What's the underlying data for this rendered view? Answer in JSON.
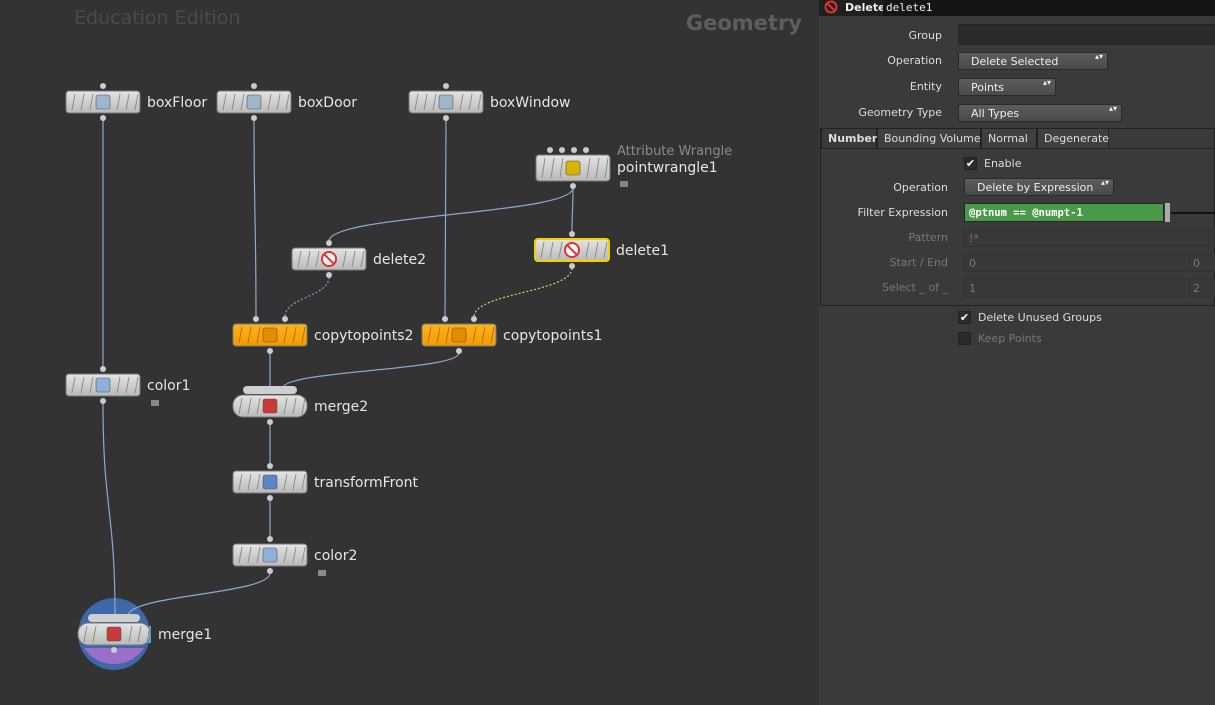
{
  "network": {
    "watermark": "Education Edition",
    "context": "Geometry",
    "nodes": [
      {
        "label": "boxFloor"
      },
      {
        "label": "boxDoor"
      },
      {
        "label": "boxWindow"
      },
      {
        "label": "pointwrangle1",
        "type_label": "Attribute Wrangle"
      },
      {
        "label": "delete2"
      },
      {
        "label": "delete1"
      },
      {
        "label": "copytopoints2"
      },
      {
        "label": "copytopoints1"
      },
      {
        "label": "color1"
      },
      {
        "label": "merge2"
      },
      {
        "label": "transformFront"
      },
      {
        "label": "color2"
      },
      {
        "label": "merge1"
      }
    ]
  },
  "parameters": {
    "node_type": "Delete",
    "node_name": "delete1",
    "fields": [
      {
        "label": "Group"
      },
      {
        "label": "Operation",
        "value": "Delete Selected"
      },
      {
        "label": "Entity",
        "value": "Points"
      },
      {
        "label": "Geometry Type",
        "value": "All Types"
      }
    ],
    "tabs": [
      "Number",
      "Bounding Volume",
      "Normal",
      "Degenerate"
    ],
    "tab_fields": [
      {
        "label": "Enable",
        "checked": true
      },
      {
        "label": "Operation",
        "value": "Delete by Expression"
      },
      {
        "label": "Filter Expression",
        "value": "@ptnum == @numpt-1"
      },
      {
        "label": "Pattern",
        "value": "!*"
      },
      {
        "label": "Start / End",
        "values": [
          0,
          0
        ]
      },
      {
        "label": "Select _ of _",
        "values": [
          1,
          2
        ]
      }
    ],
    "options": [
      {
        "label": "Delete Unused Groups",
        "checked": true
      },
      {
        "label": "Keep Points",
        "checked": false
      }
    ]
  }
}
